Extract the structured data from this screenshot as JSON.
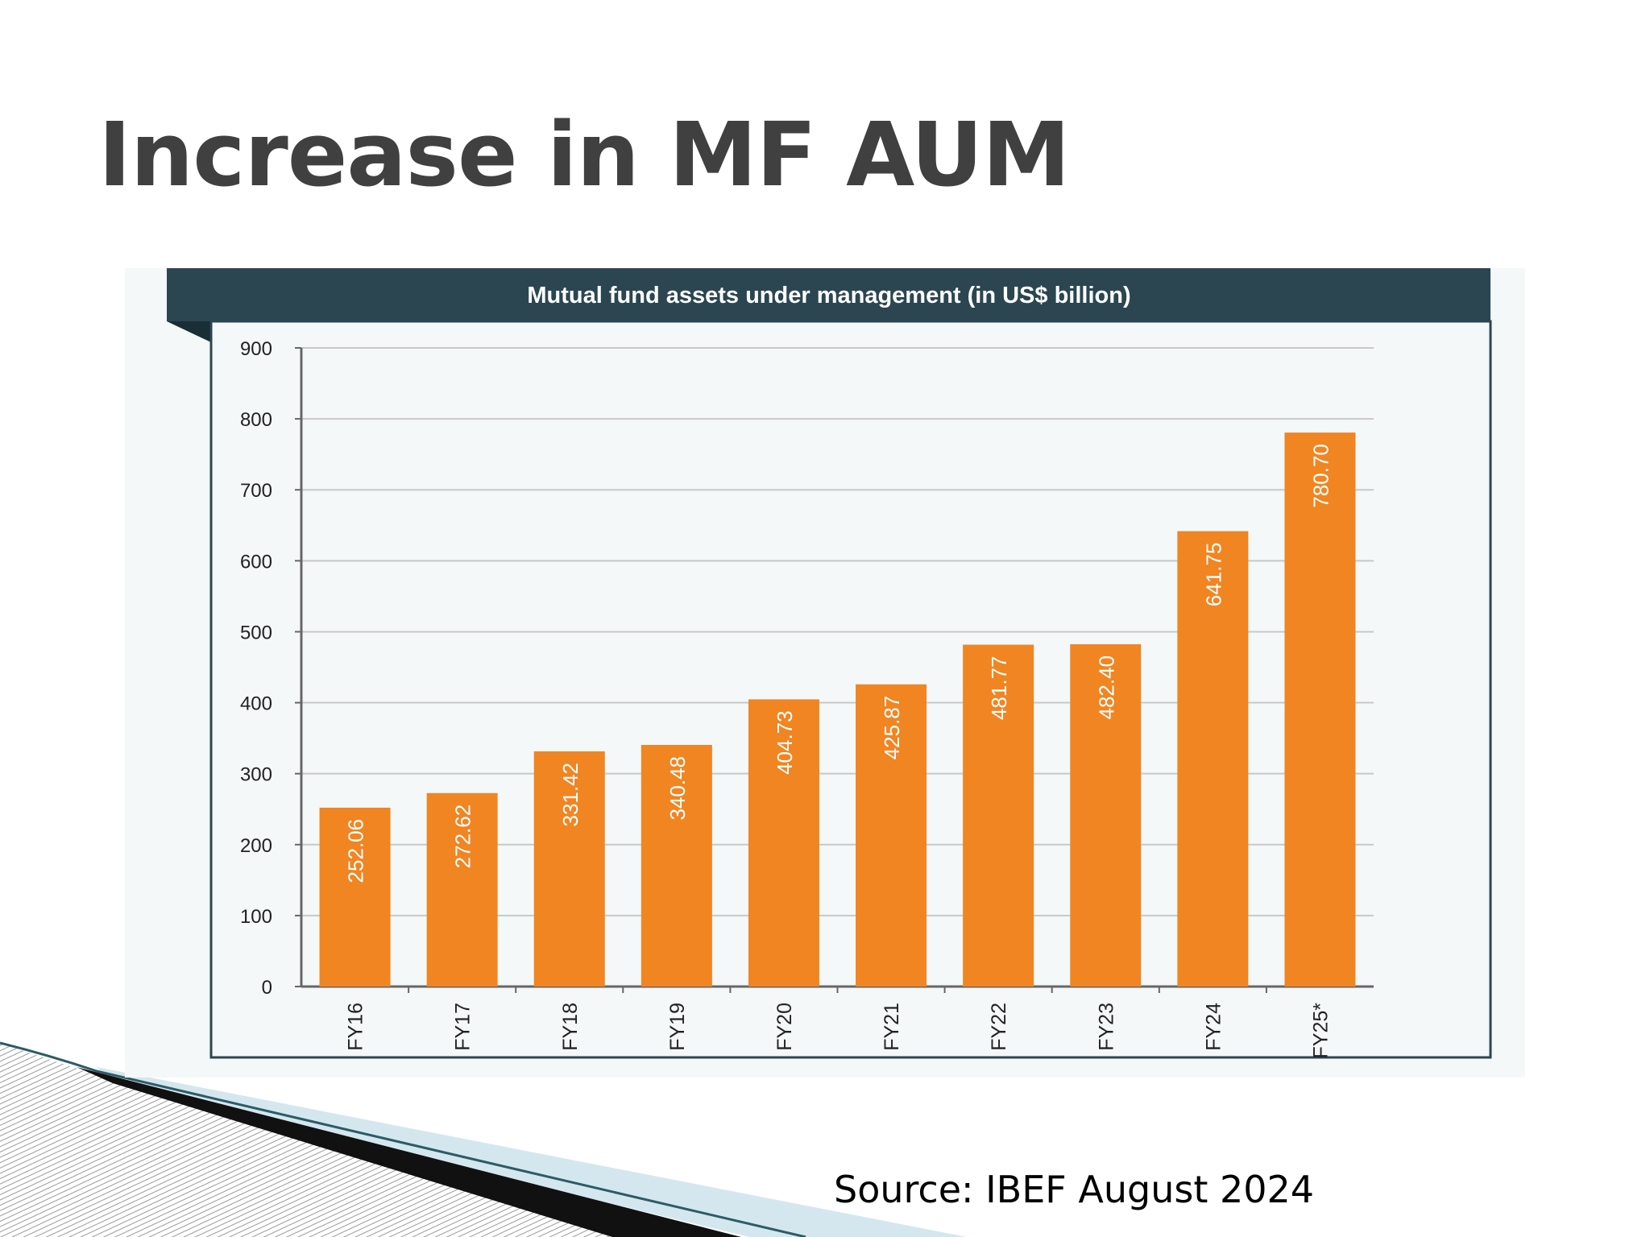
{
  "slide": {
    "title": "Increase in MF AUM",
    "source": "Source: IBEF August 2024"
  },
  "colors": {
    "bar": "#f08522",
    "header": "#2b4650",
    "grid": "#c8c8c8",
    "panel": "#f4f8f9"
  },
  "chart_data": {
    "type": "bar",
    "title": "Mutual fund assets under management (in US$ billion)",
    "categories": [
      "FY16",
      "FY17",
      "FY18",
      "FY19",
      "FY20",
      "FY21",
      "FY22",
      "FY23",
      "FY24",
      "FY25*"
    ],
    "values": [
      252.06,
      272.62,
      331.42,
      340.48,
      404.73,
      425.87,
      481.77,
      482.4,
      641.75,
      780.7
    ],
    "value_labels": [
      "252.06",
      "272.62",
      "331.42",
      "340.48",
      "404.73",
      "425.87",
      "481.77",
      "482.40",
      "641.75",
      "780.70"
    ],
    "ylim": [
      0,
      900
    ],
    "yticks": [
      0,
      100,
      200,
      300,
      400,
      500,
      600,
      700,
      800,
      900
    ],
    "grid": true,
    "legend": "none"
  }
}
